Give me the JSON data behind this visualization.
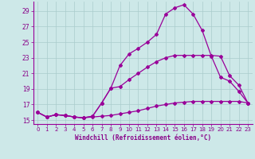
{
  "bg_color": "#cde8e8",
  "line_color": "#990099",
  "grid_color": "#aacccc",
  "xlabel": "Windchill (Refroidissement éolien,°C)",
  "xlabel_color": "#880088",
  "tick_color": "#880088",
  "xlim": [
    -0.5,
    23.5
  ],
  "ylim": [
    14.5,
    30.2
  ],
  "yticks": [
    15,
    17,
    19,
    21,
    23,
    25,
    27,
    29
  ],
  "xticks": [
    0,
    1,
    2,
    3,
    4,
    5,
    6,
    7,
    8,
    9,
    10,
    11,
    12,
    13,
    14,
    15,
    16,
    17,
    18,
    19,
    20,
    21,
    22,
    23
  ],
  "line1_x": [
    0,
    1,
    2,
    3,
    4,
    5,
    6,
    7,
    8,
    9,
    10,
    11,
    12,
    13,
    14,
    15,
    16,
    17,
    18,
    19,
    20,
    21,
    22,
    23
  ],
  "line1_y": [
    16.0,
    15.4,
    15.7,
    15.6,
    15.4,
    15.3,
    15.4,
    15.5,
    15.6,
    15.8,
    16.0,
    16.2,
    16.5,
    16.8,
    17.0,
    17.2,
    17.3,
    17.4,
    17.4,
    17.4,
    17.4,
    17.4,
    17.4,
    17.2
  ],
  "line2_x": [
    0,
    1,
    2,
    3,
    4,
    5,
    6,
    7,
    8,
    9,
    10,
    11,
    12,
    13,
    14,
    15,
    16,
    17,
    18,
    19,
    20,
    21,
    22,
    23
  ],
  "line2_y": [
    16.0,
    15.4,
    15.7,
    15.6,
    15.4,
    15.3,
    15.5,
    17.2,
    19.1,
    19.3,
    20.2,
    21.0,
    21.8,
    22.5,
    23.0,
    23.3,
    23.3,
    23.3,
    23.3,
    23.3,
    23.2,
    20.7,
    19.5,
    17.2
  ],
  "line3_x": [
    0,
    1,
    2,
    3,
    4,
    5,
    6,
    7,
    8,
    9,
    10,
    11,
    12,
    13,
    14,
    15,
    16,
    17,
    18,
    19,
    20,
    21,
    22,
    23
  ],
  "line3_y": [
    16.0,
    15.4,
    15.7,
    15.6,
    15.4,
    15.3,
    15.5,
    17.2,
    19.1,
    22.0,
    23.5,
    24.2,
    25.0,
    26.0,
    28.6,
    29.4,
    29.8,
    28.6,
    26.5,
    23.2,
    20.5,
    20.0,
    18.7,
    17.2
  ]
}
